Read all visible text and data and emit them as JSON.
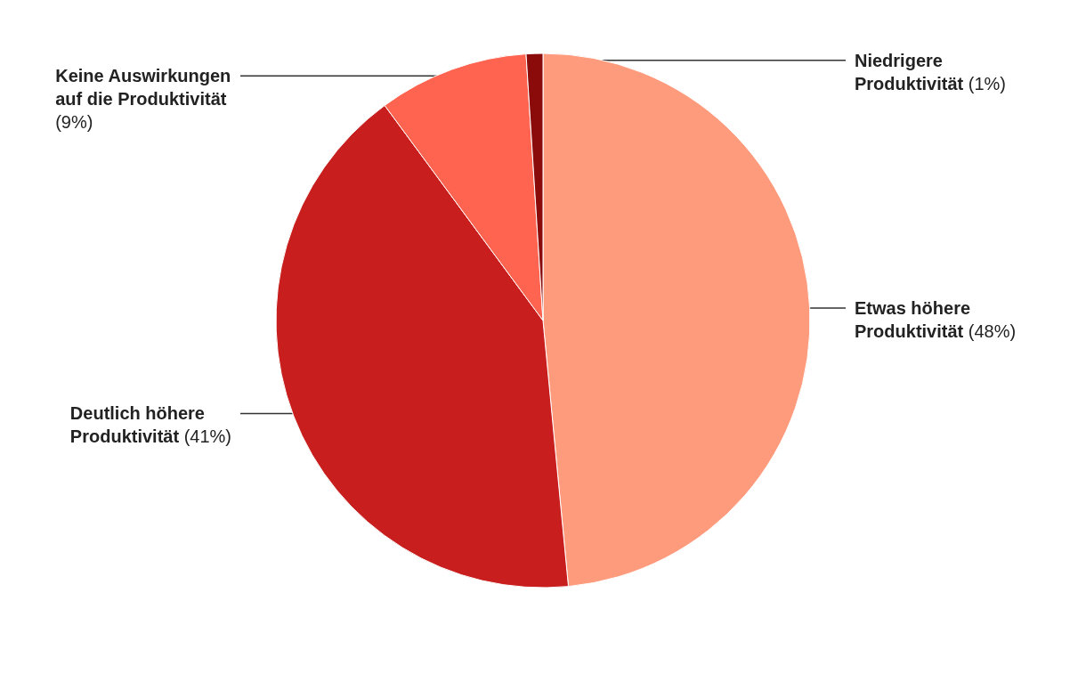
{
  "chart_data": {
    "type": "pie",
    "categories": [
      "Etwas höhere Produktivität",
      "Deutlich höhere Produktivität",
      "Keine Auswirkungen auf die Produktivität",
      "Niedrigere Produktivität"
    ],
    "values": [
      48,
      41,
      9,
      1
    ],
    "value_labels": [
      "(48%)",
      "(41%)",
      "(9%)",
      "(1%)"
    ],
    "colors": [
      "#ff9b7d",
      "#c81e1e",
      "#ff6450",
      "#8b0a0a"
    ]
  }
}
